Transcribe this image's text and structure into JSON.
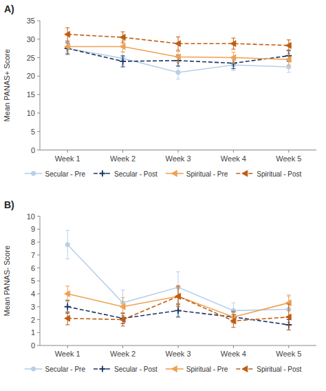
{
  "chart_data": [
    {
      "type": "line",
      "title": "A)",
      "y_label": "Mean PANAS+ Score",
      "categories": [
        "Week 1",
        "Week 2",
        "Week 3",
        "Week 4",
        "Week 5"
      ],
      "ylim": [
        0,
        35
      ],
      "yticks": [
        0,
        5,
        10,
        15,
        20,
        25,
        30,
        35
      ],
      "grid": false,
      "legend": "bottom",
      "series": [
        {
          "name": "Secular - Pre",
          "color": "#b8cfe8",
          "marker": "circle",
          "line_style": "solid",
          "values": [
            27.5,
            24.8,
            21.0,
            23.0,
            22.5
          ],
          "errors": [
            1.8,
            1.8,
            1.8,
            1.5,
            1.5
          ]
        },
        {
          "name": "Secular - Post",
          "color": "#1a3563",
          "marker": "plus",
          "line_style": "dashed",
          "values": [
            27.5,
            24.0,
            24.2,
            23.5,
            25.5
          ],
          "errors": [
            1.5,
            1.5,
            1.5,
            1.5,
            1.5
          ]
        },
        {
          "name": "Spiritual - Pre",
          "color": "#f0a050",
          "marker": "triangle-left",
          "line_style": "solid",
          "values": [
            28.0,
            28.0,
            25.2,
            25.0,
            24.5
          ],
          "errors": [
            1.5,
            1.5,
            1.5,
            1.5,
            1.5
          ]
        },
        {
          "name": "Spiritual - Post",
          "color": "#c05c10",
          "marker": "triangle-left",
          "line_style": "dashed",
          "values": [
            31.3,
            30.5,
            28.8,
            28.8,
            28.3
          ],
          "errors": [
            1.8,
            1.5,
            1.8,
            1.5,
            1.5
          ]
        }
      ]
    },
    {
      "type": "line",
      "title": "B)",
      "y_label": "Mean PANAS- Score",
      "categories": [
        "Week 1",
        "Week 2",
        "Week 3",
        "Week 4",
        "Week 5"
      ],
      "ylim": [
        0,
        10
      ],
      "yticks": [
        0,
        1,
        2,
        3,
        4,
        5,
        6,
        7,
        8,
        9,
        10
      ],
      "grid": false,
      "legend": "bottom",
      "series": [
        {
          "name": "Secular - Pre",
          "color": "#b8cfe8",
          "marker": "circle",
          "line_style": "solid",
          "values": [
            7.8,
            3.3,
            4.5,
            2.7,
            2.8
          ],
          "errors": [
            1.1,
            1.0,
            1.2,
            0.6,
            1.0
          ]
        },
        {
          "name": "Secular - Post",
          "color": "#1a3563",
          "marker": "plus",
          "line_style": "dashed",
          "values": [
            3.0,
            2.1,
            2.7,
            2.2,
            1.6
          ],
          "errors": [
            0.5,
            0.4,
            0.5,
            0.4,
            0.4
          ]
        },
        {
          "name": "Spiritual - Pre",
          "color": "#f0a050",
          "marker": "triangle-left",
          "line_style": "solid",
          "values": [
            4.0,
            3.0,
            3.8,
            2.2,
            3.3
          ],
          "errors": [
            0.6,
            0.7,
            0.7,
            0.5,
            0.6
          ]
        },
        {
          "name": "Spiritual - Post",
          "color": "#c05c10",
          "marker": "triangle-left",
          "line_style": "dashed",
          "values": [
            2.1,
            2.0,
            3.8,
            1.9,
            2.2
          ],
          "errors": [
            0.5,
            0.5,
            0.8,
            0.5,
            1.0
          ]
        }
      ]
    }
  ]
}
